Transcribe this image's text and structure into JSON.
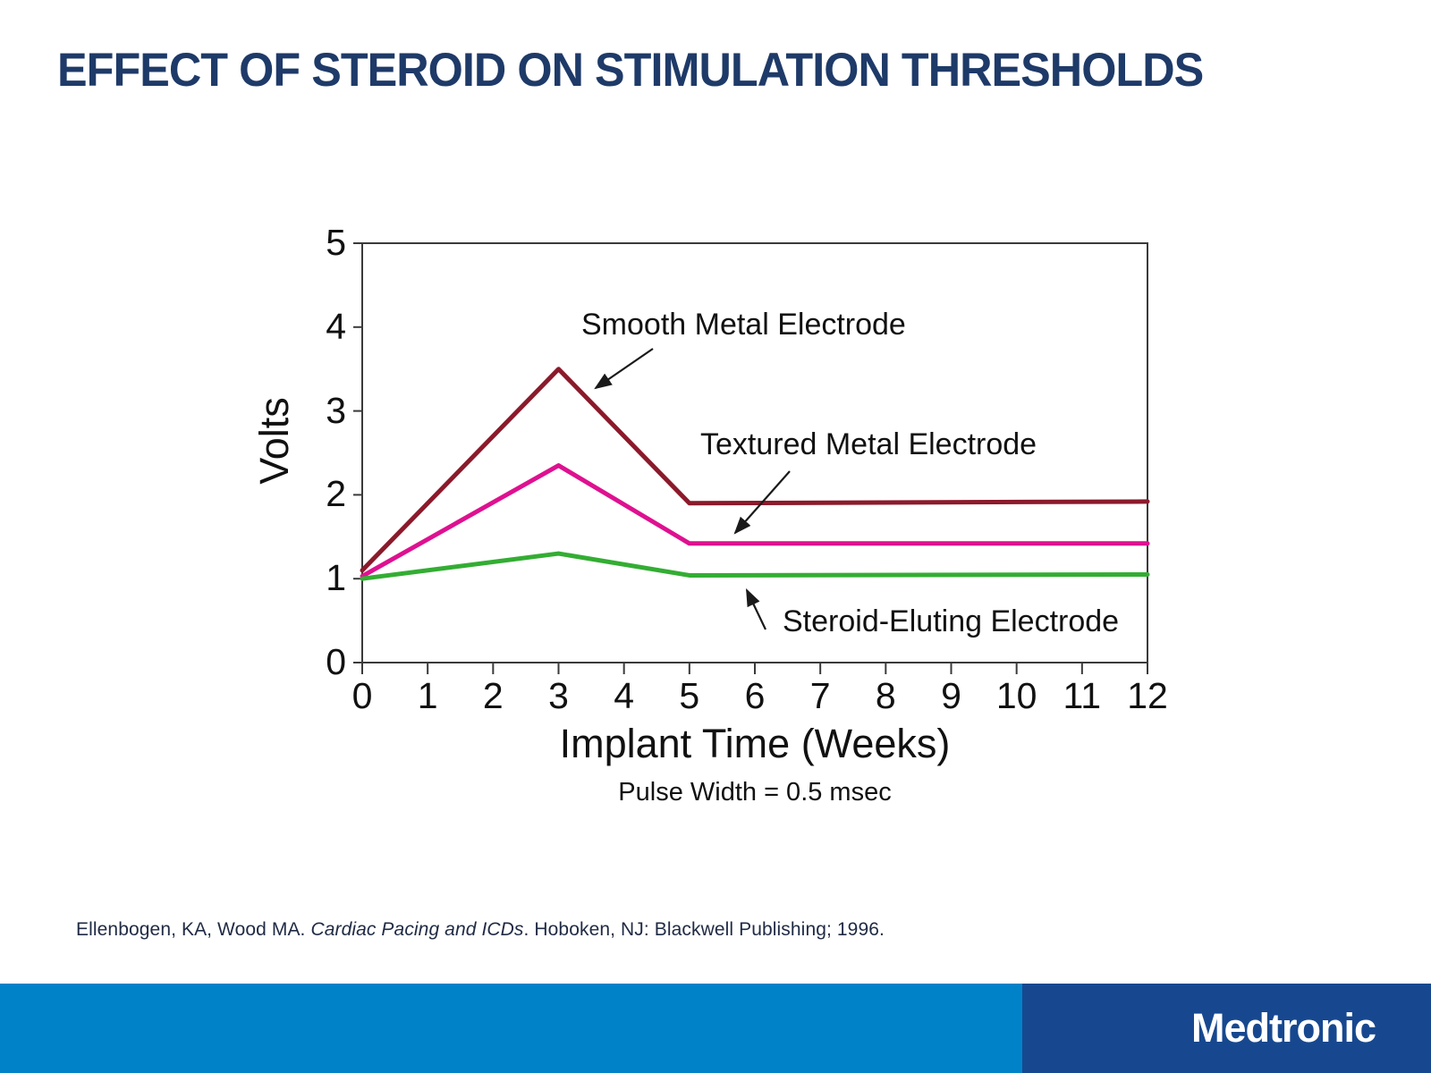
{
  "slide": {
    "title": "EFFECT OF STEROID ON STIMULATION THRESHOLDS",
    "citation": {
      "part1": "Ellenbogen, KA, Wood MA. ",
      "italic": "Cardiac Pacing and ICDs",
      "part2": ". Hoboken, NJ: Blackwell Publishing; 1996."
    },
    "footer": {
      "brand": "Medtronic"
    }
  },
  "colors": {
    "title": "#1E3A68",
    "footer_blue": "#0082C9",
    "footer_navy": "#17488F",
    "axis": "#3A3A3A"
  },
  "chart_data": {
    "type": "line",
    "title": "",
    "xlabel": "Implant Time (Weeks)",
    "sub_label": "Pulse Width = 0.5 msec",
    "ylabel": "Volts",
    "xlim": [
      0,
      12
    ],
    "ylim": [
      0,
      5
    ],
    "x_ticks": [
      0,
      1,
      2,
      3,
      4,
      5,
      6,
      7,
      8,
      9,
      10,
      11,
      12
    ],
    "y_ticks": [
      0,
      1,
      2,
      3,
      4,
      5
    ],
    "grid": false,
    "legend_position": "inline-annotations",
    "series": [
      {
        "name": "Smooth Metal Electrode",
        "color": "#8B1A2B",
        "points": [
          [
            0,
            1.1
          ],
          [
            3,
            3.5
          ],
          [
            5,
            1.9
          ],
          [
            12,
            1.92
          ]
        ]
      },
      {
        "name": "Textured Metal Electrode",
        "color": "#DE1190",
        "points": [
          [
            0,
            1.03
          ],
          [
            3,
            2.35
          ],
          [
            5,
            1.42
          ],
          [
            12,
            1.42
          ]
        ]
      },
      {
        "name": "Steroid-Eluting Electrode",
        "color": "#33AD33",
        "points": [
          [
            0,
            1.0
          ],
          [
            3,
            1.3
          ],
          [
            5,
            1.04
          ],
          [
            12,
            1.05
          ]
        ]
      }
    ]
  }
}
